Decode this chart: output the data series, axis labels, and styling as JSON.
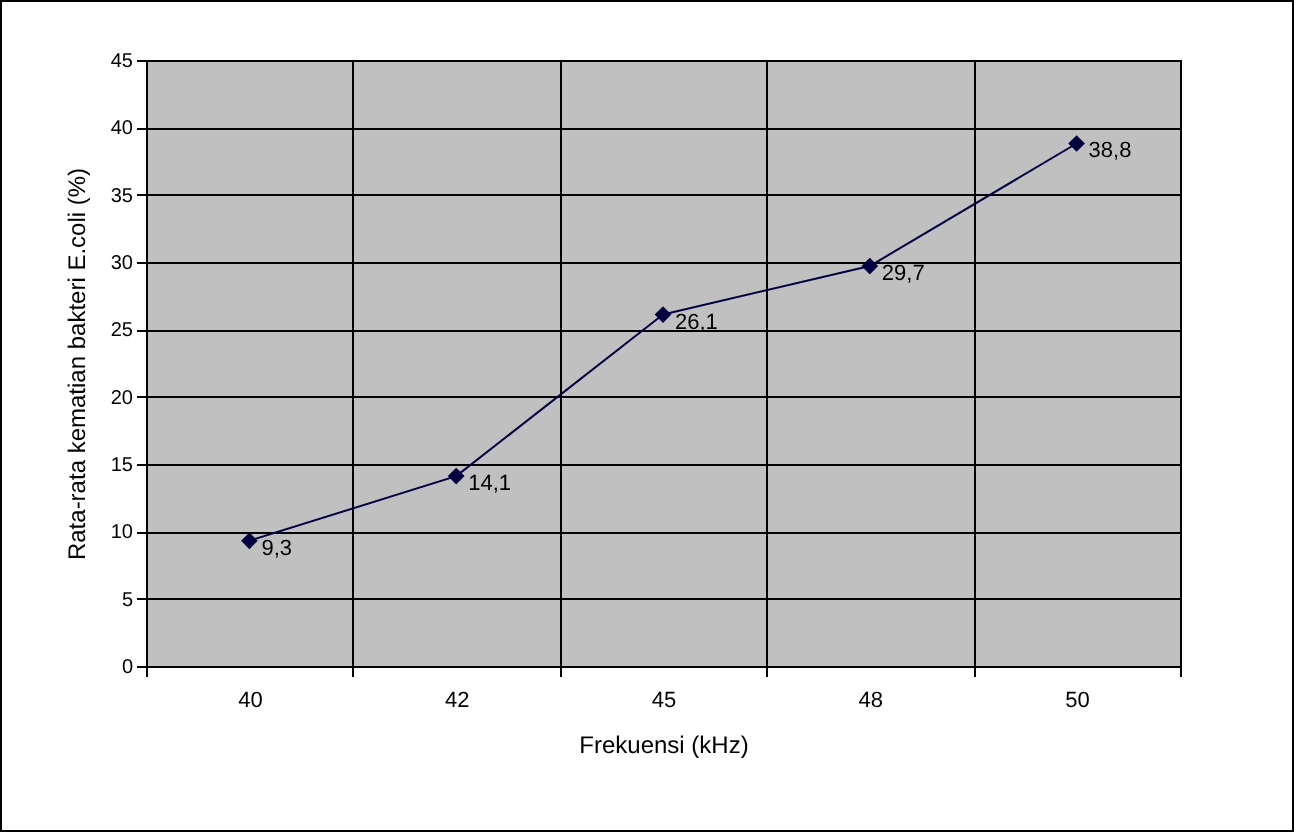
{
  "chart_data": {
    "type": "line",
    "xlabel": "Frekuensi (kHz)",
    "ylabel": "Rata-rata kematian bakteri E.coli (%)",
    "categories": [
      "40",
      "42",
      "45",
      "48",
      "50"
    ],
    "series": [
      {
        "color": "#000040",
        "values": [
          9.3,
          14.1,
          26.1,
          29.7,
          38.8
        ],
        "value_labels": [
          "9,3",
          "14,1",
          "26,1",
          "29,7",
          "38,8"
        ]
      }
    ],
    "ylim": [
      0,
      45
    ],
    "yticks": [
      0,
      5,
      10,
      15,
      20,
      25,
      30,
      35,
      40,
      45
    ],
    "grid": true,
    "marker": "diamond",
    "line_style": "solid"
  }
}
